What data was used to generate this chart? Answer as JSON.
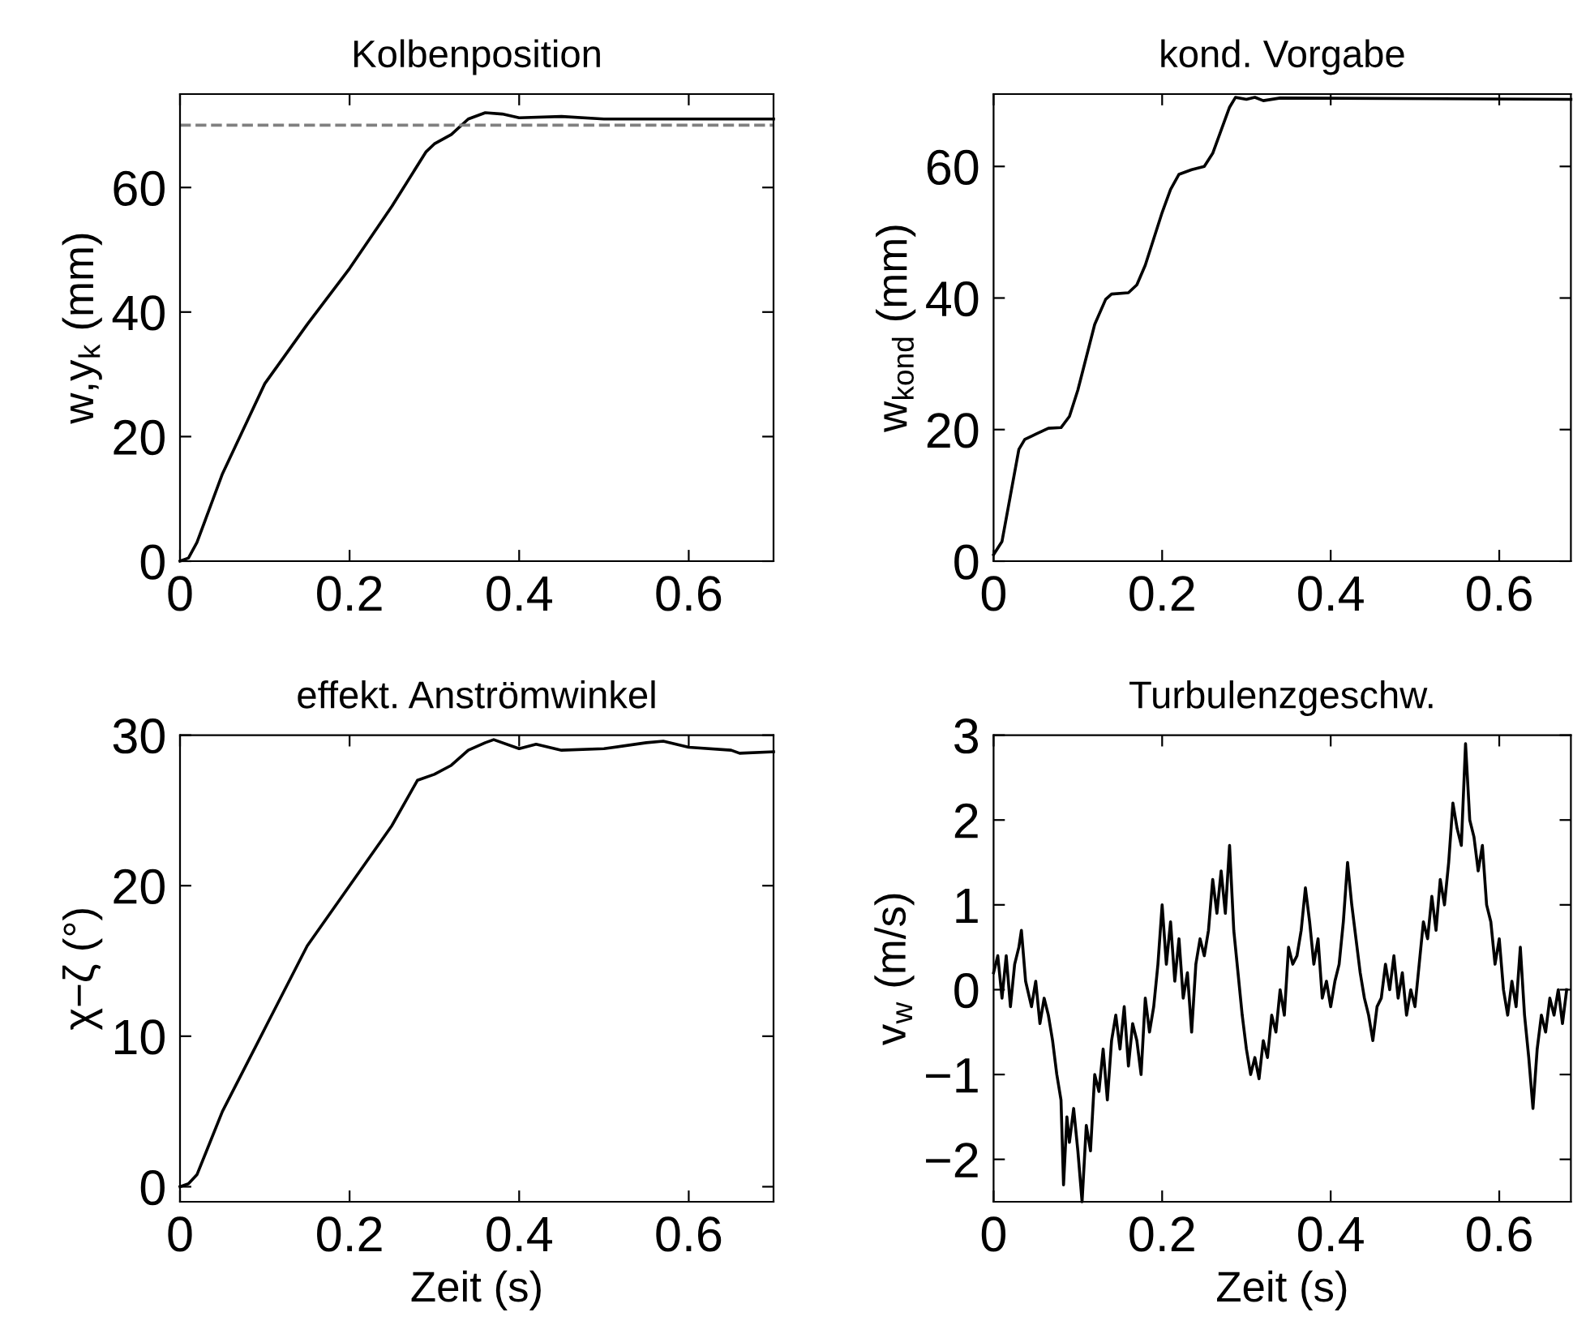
{
  "chart_data": [
    {
      "type": "line",
      "title": "Kolbenposition",
      "ylabel": "w,y$_{k}$ (mm)",
      "xlim": [
        0,
        0.7
      ],
      "ylim": [
        0,
        75
      ],
      "xticks": [
        0,
        0.2,
        0.4,
        0.6
      ],
      "yticks": [
        0,
        20,
        40,
        60
      ],
      "series": [
        {
          "color": "#000000",
          "x": [
            0,
            0.01,
            0.02,
            0.05,
            0.1,
            0.15,
            0.2,
            0.25,
            0.29,
            0.3,
            0.32,
            0.34,
            0.36,
            0.38,
            0.4,
            0.45,
            0.5,
            0.7
          ],
          "values": [
            0,
            0.5,
            3,
            14,
            28.5,
            38,
            47,
            57,
            65.7,
            67,
            68.5,
            71,
            72,
            71.8,
            71.2,
            71.4,
            71,
            71
          ]
        }
      ],
      "ref_lines": [
        {
          "axis": "y",
          "value": 70,
          "color": "#808080",
          "line_style": "dashed"
        }
      ]
    },
    {
      "type": "line",
      "title": "kond. Vorgabe",
      "ylabel": "w$_{kond}$ (mm)",
      "xlim": [
        0,
        0.685
      ],
      "ylim": [
        0,
        71
      ],
      "xticks": [
        0,
        0.2,
        0.4,
        0.6
      ],
      "yticks": [
        0,
        20,
        40,
        60
      ],
      "series": [
        {
          "color": "#000000",
          "x": [
            0,
            0.01,
            0.02,
            0.03,
            0.037,
            0.05,
            0.065,
            0.08,
            0.09,
            0.1,
            0.11,
            0.12,
            0.133,
            0.14,
            0.16,
            0.17,
            0.18,
            0.19,
            0.2,
            0.21,
            0.22,
            0.235,
            0.25,
            0.26,
            0.27,
            0.28,
            0.287,
            0.3,
            0.31,
            0.32,
            0.34,
            0.685
          ],
          "values": [
            1,
            3,
            10,
            17,
            18.5,
            19.3,
            20.2,
            20.3,
            22,
            26,
            31,
            36,
            39.8,
            40.6,
            40.8,
            42,
            45,
            49,
            53,
            56.5,
            58.8,
            59.5,
            60,
            62,
            65.5,
            69,
            70.5,
            70.2,
            70.5,
            70,
            70.4,
            70.2
          ]
        }
      ]
    },
    {
      "type": "line",
      "title": "effekt. Anströmwinkel",
      "xlabel": "Zeit (s)",
      "ylabel": "χ−ζ (°)",
      "xlim": [
        0,
        0.7
      ],
      "ylim": [
        -1,
        30
      ],
      "xticks": [
        0,
        0.2,
        0.4,
        0.6
      ],
      "yticks": [
        0,
        10,
        20,
        30
      ],
      "series": [
        {
          "color": "#000000",
          "x": [
            0,
            0.01,
            0.02,
            0.05,
            0.1,
            0.15,
            0.2,
            0.25,
            0.28,
            0.3,
            0.32,
            0.34,
            0.36,
            0.37,
            0.4,
            0.42,
            0.45,
            0.5,
            0.55,
            0.57,
            0.6,
            0.65,
            0.66,
            0.7
          ],
          "values": [
            0,
            0.2,
            0.8,
            5,
            10.5,
            16,
            20,
            24,
            27,
            27.4,
            28,
            29,
            29.5,
            29.7,
            29.1,
            29.4,
            29,
            29.1,
            29.5,
            29.6,
            29.2,
            29,
            28.8,
            28.9
          ]
        }
      ]
    },
    {
      "type": "line",
      "title": "Turbulenzgeschw.",
      "xlabel": "Zeit (s)",
      "ylabel": "v$_{w}$ (m/s)",
      "xlim": [
        0,
        0.685
      ],
      "ylim": [
        -2.5,
        3
      ],
      "xticks": [
        0,
        0.2,
        0.4,
        0.6
      ],
      "yticks": [
        {
          "value": -2,
          "label": "−2"
        },
        {
          "value": -1,
          "label": "−1"
        },
        0,
        1,
        2,
        3
      ],
      "series": [
        {
          "color": "#000000",
          "x": [
            0,
            0.005,
            0.01,
            0.015,
            0.02,
            0.025,
            0.03,
            0.033,
            0.038,
            0.045,
            0.05,
            0.055,
            0.06,
            0.065,
            0.07,
            0.075,
            0.08,
            0.083,
            0.087,
            0.09,
            0.095,
            0.1,
            0.105,
            0.11,
            0.115,
            0.12,
            0.125,
            0.13,
            0.135,
            0.14,
            0.145,
            0.15,
            0.155,
            0.16,
            0.165,
            0.17,
            0.175,
            0.18,
            0.185,
            0.19,
            0.195,
            0.2,
            0.205,
            0.21,
            0.215,
            0.22,
            0.225,
            0.23,
            0.235,
            0.24,
            0.245,
            0.25,
            0.255,
            0.26,
            0.265,
            0.27,
            0.275,
            0.28,
            0.285,
            0.29,
            0.295,
            0.3,
            0.305,
            0.31,
            0.315,
            0.32,
            0.325,
            0.33,
            0.335,
            0.34,
            0.345,
            0.35,
            0.355,
            0.36,
            0.365,
            0.37,
            0.375,
            0.38,
            0.385,
            0.39,
            0.395,
            0.4,
            0.405,
            0.41,
            0.415,
            0.42,
            0.425,
            0.43,
            0.435,
            0.44,
            0.445,
            0.45,
            0.455,
            0.46,
            0.465,
            0.47,
            0.475,
            0.48,
            0.485,
            0.49,
            0.495,
            0.5,
            0.505,
            0.51,
            0.515,
            0.52,
            0.525,
            0.53,
            0.535,
            0.54,
            0.545,
            0.55,
            0.555,
            0.56,
            0.565,
            0.57,
            0.575,
            0.58,
            0.585,
            0.59,
            0.595,
            0.6,
            0.605,
            0.61,
            0.615,
            0.62,
            0.625,
            0.63,
            0.635,
            0.64,
            0.645,
            0.65,
            0.655,
            0.66,
            0.665,
            0.67,
            0.675,
            0.68
          ],
          "values": [
            0.2,
            0.4,
            -0.1,
            0.4,
            -0.2,
            0.3,
            0.5,
            0.7,
            0.1,
            -0.2,
            0.1,
            -0.4,
            -0.1,
            -0.3,
            -0.6,
            -1.0,
            -1.3,
            -2.3,
            -1.5,
            -1.8,
            -1.4,
            -1.9,
            -2.5,
            -1.6,
            -1.9,
            -1.0,
            -1.2,
            -0.7,
            -1.3,
            -0.6,
            -0.3,
            -0.7,
            -0.2,
            -0.9,
            -0.4,
            -0.6,
            -1.0,
            -0.1,
            -0.5,
            -0.2,
            0.3,
            1.0,
            0.3,
            0.8,
            0.1,
            0.6,
            -0.1,
            0.2,
            -0.5,
            0.3,
            0.6,
            0.4,
            0.7,
            1.3,
            0.9,
            1.4,
            0.9,
            1.7,
            0.7,
            0.2,
            -0.3,
            -0.7,
            -1.0,
            -0.8,
            -1.05,
            -0.6,
            -0.8,
            -0.3,
            -0.5,
            0.0,
            -0.3,
            0.5,
            0.3,
            0.4,
            0.7,
            1.2,
            0.8,
            0.3,
            0.6,
            -0.1,
            0.1,
            -0.2,
            0.1,
            0.3,
            0.8,
            1.5,
            1.0,
            0.6,
            0.2,
            -0.1,
            -0.3,
            -0.6,
            -0.2,
            -0.1,
            0.3,
            0.0,
            0.4,
            -0.1,
            0.2,
            -0.3,
            0.0,
            -0.2,
            0.3,
            0.8,
            0.6,
            1.1,
            0.7,
            1.3,
            1.0,
            1.5,
            2.2,
            1.9,
            1.7,
            2.9,
            2.0,
            1.8,
            1.4,
            1.7,
            1.0,
            0.8,
            0.3,
            0.6,
            0.0,
            -0.3,
            0.1,
            -0.2,
            0.5,
            -0.3,
            -0.8,
            -1.4,
            -0.7,
            -0.3,
            -0.5,
            -0.1,
            -0.3,
            0.0,
            -0.4,
            0.0
          ]
        }
      ]
    }
  ]
}
